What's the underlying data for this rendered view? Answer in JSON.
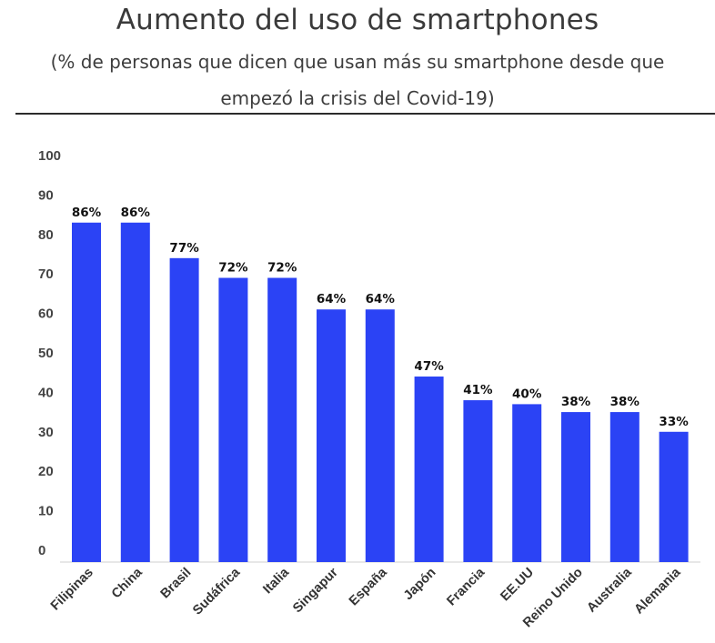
{
  "chart_data": {
    "type": "bar",
    "title": "Aumento del uso de smartphones",
    "subtitle": "(% de personas que dicen que usan más su smartphone desde que empezó la crisis del Covid-19)",
    "categories": [
      "Filipinas",
      "China",
      "Brasil",
      "Sudáfrica",
      "Italia",
      "Singapur",
      "España",
      "Japón",
      "Francia",
      "EE.UU",
      "Reino Unido",
      "Australia",
      "Alemania"
    ],
    "values": [
      86,
      86,
      77,
      72,
      72,
      64,
      64,
      47,
      41,
      40,
      38,
      38,
      33
    ],
    "value_labels": [
      "86%",
      "86%",
      "77%",
      "72%",
      "72%",
      "64%",
      "64%",
      "47%",
      "41%",
      "40%",
      "38%",
      "38%",
      "33%"
    ],
    "yticks": [
      "0",
      "10",
      "20",
      "30",
      "40",
      "50",
      "60",
      "70",
      "80",
      "90",
      "100"
    ],
    "ylim": [
      0,
      100
    ],
    "xlabel": "",
    "ylabel": "",
    "grid": false,
    "bar_color": "#2b43f5"
  }
}
